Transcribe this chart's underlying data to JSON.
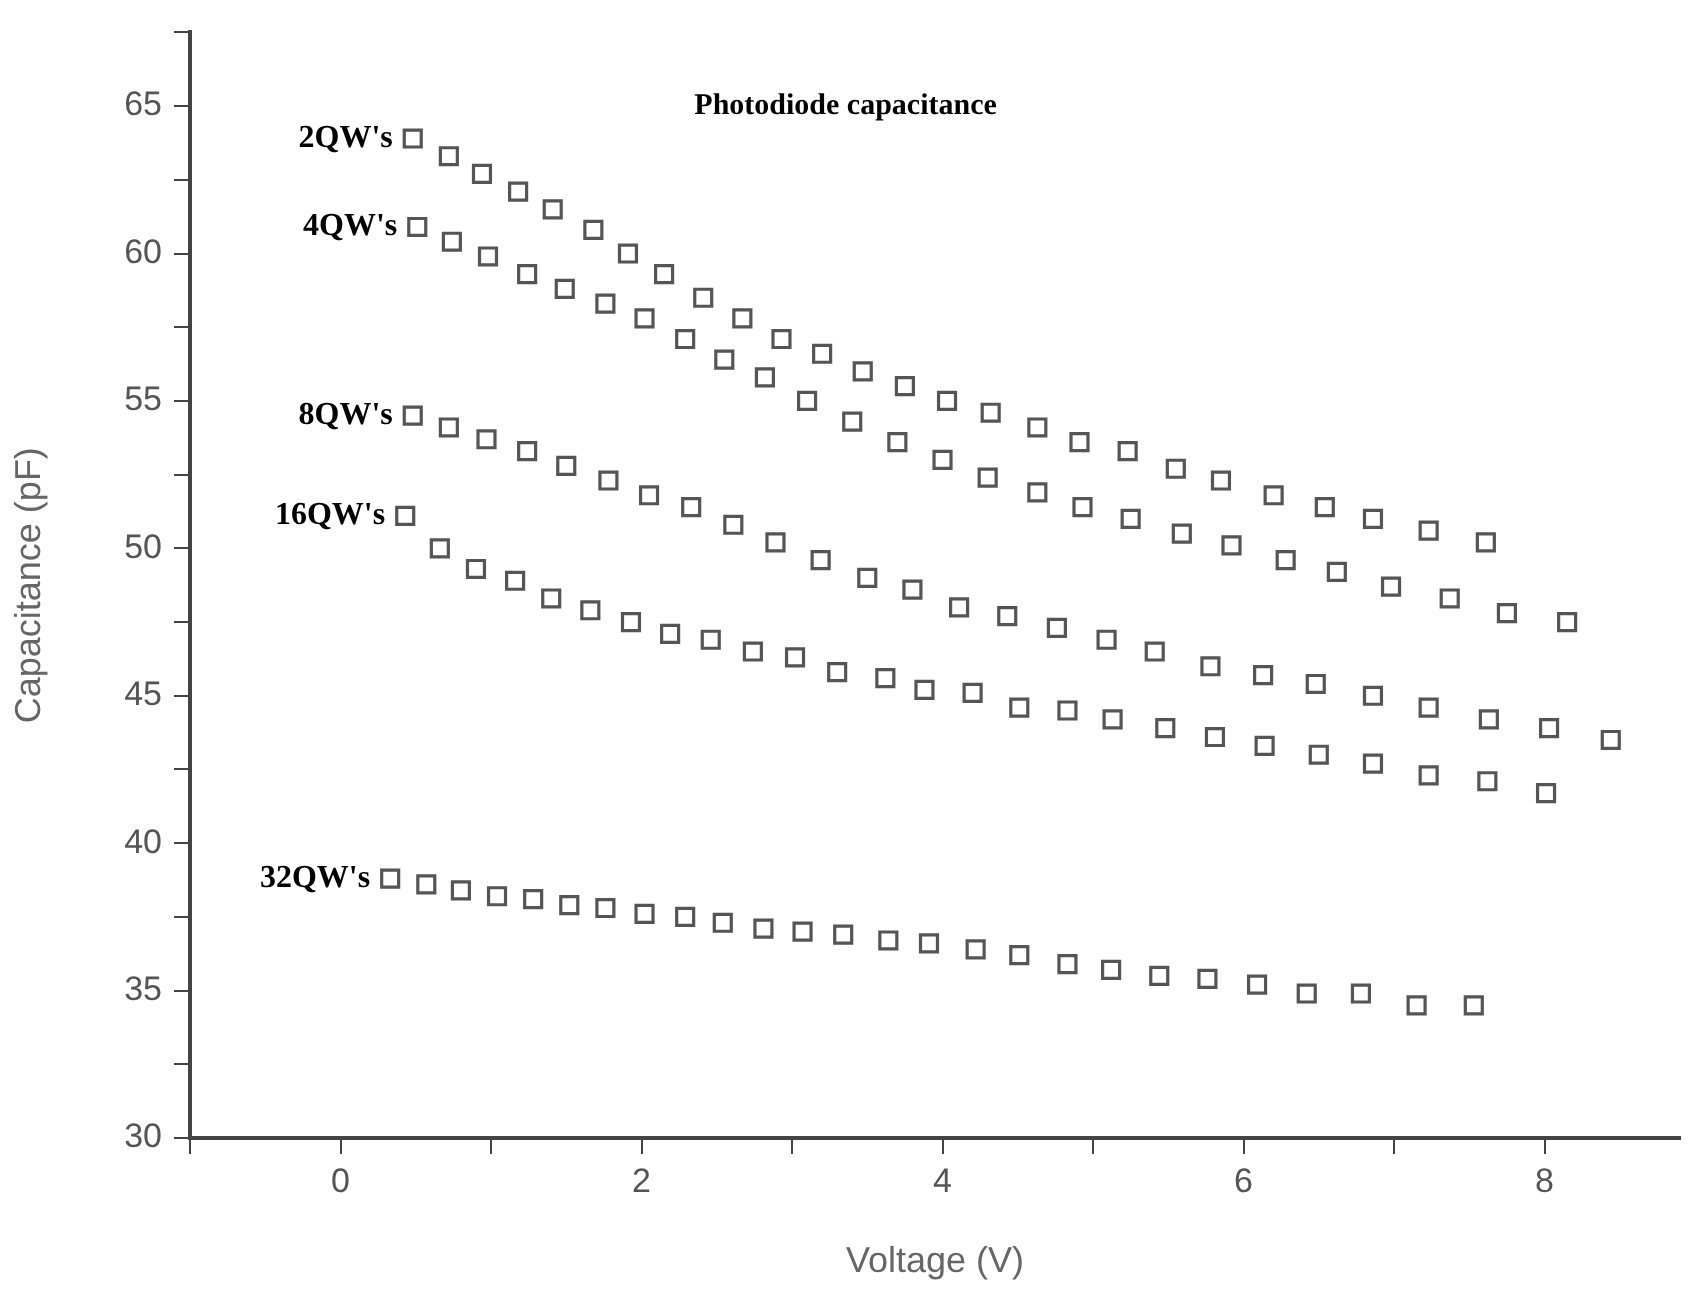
{
  "chart_data": {
    "type": "scatter",
    "title": "Photodiode capacitance",
    "xlabel": "Voltage (V)",
    "ylabel": "Capacitance (pF)",
    "marker": "square",
    "grid": false,
    "legend": false,
    "xlim": [
      -1,
      8.9
    ],
    "xticks": [
      {
        "value": -1,
        "label": null
      },
      0,
      {
        "value": 1,
        "label": null
      },
      2,
      {
        "value": 3,
        "label": null
      },
      4,
      {
        "value": 5,
        "label": null
      },
      6,
      {
        "value": 7,
        "label": null
      },
      8
    ],
    "ylim": [
      30,
      67.5
    ],
    "yticks": [
      30,
      {
        "value": 32.5,
        "label": null
      },
      35,
      {
        "value": 37.5,
        "label": null
      },
      40,
      {
        "value": 42.5,
        "label": null
      },
      45,
      {
        "value": 47.5,
        "label": null
      },
      50,
      {
        "value": 52.5,
        "label": null
      },
      55,
      {
        "value": 57.5,
        "label": null
      },
      60,
      {
        "value": 62.5,
        "label": null
      },
      65,
      {
        "value": 67.5,
        "label": null
      }
    ],
    "series": [
      {
        "name": "2QW's",
        "color": "#555555",
        "x": [
          0.48,
          0.72,
          0.94,
          1.18,
          1.41,
          1.68,
          1.91,
          2.15,
          2.41,
          2.67,
          2.93,
          3.2,
          3.47,
          3.75,
          4.03,
          4.32,
          4.63,
          4.91,
          5.23,
          5.55,
          5.85,
          6.2,
          6.54,
          6.86,
          7.23,
          7.61
        ],
        "values": [
          63.9,
          63.3,
          62.7,
          62.1,
          61.5,
          60.8,
          60.0,
          59.3,
          58.5,
          57.8,
          57.1,
          56.6,
          56.0,
          55.5,
          55.0,
          54.6,
          54.1,
          53.6,
          53.3,
          52.7,
          52.3,
          51.8,
          51.4,
          51.0,
          50.6,
          50.2
        ]
      },
      {
        "name": "4QW's",
        "color": "#555555",
        "x": [
          0.51,
          0.74,
          0.98,
          1.24,
          1.49,
          1.76,
          2.02,
          2.29,
          2.55,
          2.82,
          3.1,
          3.4,
          3.7,
          4.0,
          4.3,
          4.63,
          4.93,
          5.25,
          5.59,
          5.92,
          6.28,
          6.62,
          6.98,
          7.37,
          7.75,
          8.15
        ],
        "values": [
          60.9,
          60.4,
          59.9,
          59.3,
          58.8,
          58.3,
          57.8,
          57.1,
          56.4,
          55.8,
          55.0,
          54.3,
          53.6,
          53.0,
          52.4,
          51.9,
          51.4,
          51.0,
          50.5,
          50.1,
          49.6,
          49.2,
          48.7,
          48.3,
          47.8,
          47.5
        ]
      },
      {
        "name": "8QW's",
        "color": "#555555",
        "x": [
          0.48,
          0.72,
          0.97,
          1.24,
          1.5,
          1.78,
          2.05,
          2.33,
          2.61,
          2.89,
          3.19,
          3.5,
          3.8,
          4.11,
          4.43,
          4.76,
          5.09,
          5.41,
          5.78,
          6.13,
          6.48,
          6.86,
          7.23,
          7.63,
          8.03,
          8.44
        ],
        "values": [
          54.5,
          54.1,
          53.7,
          53.3,
          52.8,
          52.3,
          51.8,
          51.4,
          50.8,
          50.2,
          49.6,
          49.0,
          48.6,
          48.0,
          47.7,
          47.3,
          46.9,
          46.5,
          46.0,
          45.7,
          45.4,
          45.0,
          44.6,
          44.2,
          43.9,
          43.5
        ]
      },
      {
        "name": "16QW's",
        "color": "#555555",
        "x": [
          0.43,
          0.66,
          0.9,
          1.16,
          1.4,
          1.66,
          1.93,
          2.19,
          2.46,
          2.74,
          3.02,
          3.3,
          3.62,
          3.88,
          4.2,
          4.51,
          4.83,
          5.13,
          5.48,
          5.81,
          6.14,
          6.5,
          6.86,
          7.23,
          7.62,
          8.01
        ],
        "values": [
          51.1,
          50.0,
          49.3,
          48.9,
          48.3,
          47.9,
          47.5,
          47.1,
          46.9,
          46.5,
          46.3,
          45.8,
          45.6,
          45.2,
          45.1,
          44.6,
          44.5,
          44.2,
          43.9,
          43.6,
          43.3,
          43.0,
          42.7,
          42.3,
          42.1,
          41.7
        ]
      },
      {
        "name": "32QW's",
        "color": "#555555",
        "x": [
          0.33,
          0.57,
          0.8,
          1.04,
          1.28,
          1.52,
          1.76,
          2.02,
          2.29,
          2.54,
          2.81,
          3.07,
          3.34,
          3.64,
          3.91,
          4.22,
          4.51,
          4.83,
          5.12,
          5.44,
          5.76,
          6.09,
          6.42,
          6.78,
          7.15,
          7.53
        ],
        "values": [
          38.8,
          38.6,
          38.4,
          38.2,
          38.1,
          37.9,
          37.8,
          37.6,
          37.5,
          37.3,
          37.1,
          37.0,
          36.9,
          36.7,
          36.6,
          36.4,
          36.2,
          35.9,
          35.7,
          35.5,
          35.4,
          35.2,
          34.9,
          34.9,
          34.5,
          34.5
        ]
      }
    ]
  }
}
